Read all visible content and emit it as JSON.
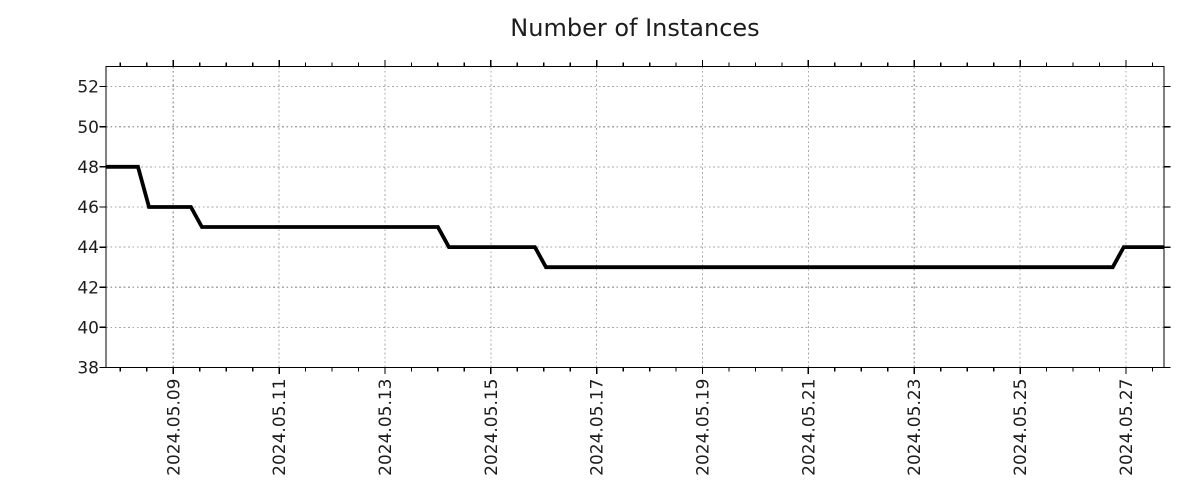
{
  "chart_data": {
    "type": "line",
    "title": "Number of Instances",
    "xlabel": "",
    "ylabel": "",
    "grid": {
      "show": true,
      "linestyle": "dotted",
      "color": "#a6a6a6"
    },
    "legend": {
      "show": false
    },
    "axis_color": "#000000",
    "x_axis": {
      "kind": "time",
      "min": "2024-05-07 17:30",
      "max": "2024-05-27 17:15",
      "major_ticks": [
        "2024-05-09 00:00",
        "2024-05-11 00:00",
        "2024-05-13 00:00",
        "2024-05-15 00:00",
        "2024-05-17 00:00",
        "2024-05-19 00:00",
        "2024-05-21 00:00",
        "2024-05-23 00:00",
        "2024-05-25 00:00",
        "2024-05-27 00:00"
      ],
      "major_tick_labels": [
        "2024.05.09",
        "2024.05.11",
        "2024.05.13",
        "2024.05.15",
        "2024.05.17",
        "2024.05.19",
        "2024.05.21",
        "2024.05.23",
        "2024.05.25",
        "2024.05.27"
      ],
      "minor_ticks_every_hours": 12,
      "tick_label_rotation": -90
    },
    "y_axis": {
      "min": 38,
      "max": 53,
      "major_ticks": [
        38,
        40,
        42,
        44,
        46,
        48,
        50,
        52
      ],
      "major_tick_labels": [
        "38",
        "40",
        "42",
        "44",
        "46",
        "48",
        "50",
        "52"
      ]
    },
    "series": [
      {
        "name": "Number of Instances",
        "color": "#000000",
        "line_width": 3.8,
        "points": [
          [
            "2024-05-07 17:30",
            48
          ],
          [
            "2024-05-08 08:00",
            48
          ],
          [
            "2024-05-08 13:00",
            46
          ],
          [
            "2024-05-09 08:00",
            46
          ],
          [
            "2024-05-09 13:00",
            45
          ],
          [
            "2024-05-14 00:00",
            45
          ],
          [
            "2024-05-14 05:00",
            44
          ],
          [
            "2024-05-15 20:00",
            44
          ],
          [
            "2024-05-16 01:00",
            43
          ],
          [
            "2024-05-26 18:00",
            43
          ],
          [
            "2024-05-26 23:00",
            44
          ],
          [
            "2024-05-27 17:15",
            44
          ]
        ]
      }
    ]
  }
}
